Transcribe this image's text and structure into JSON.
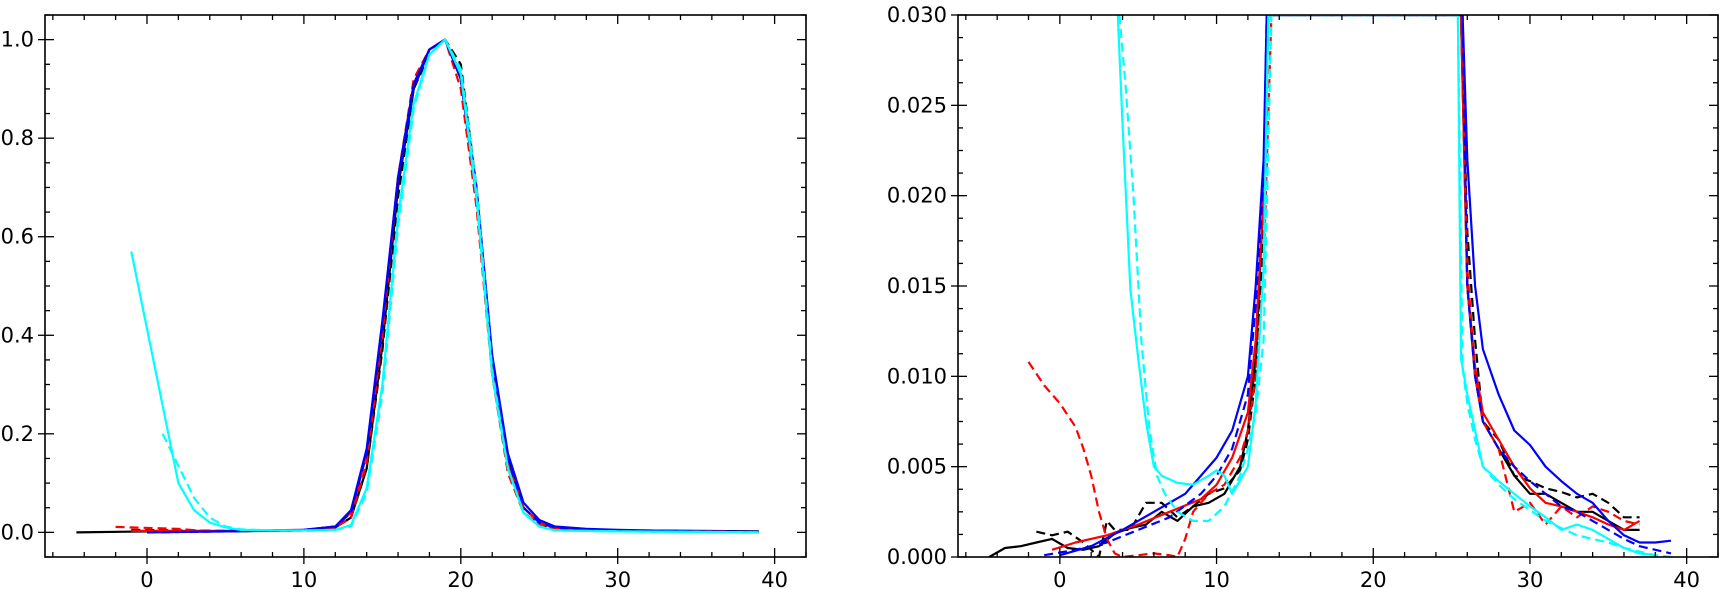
{
  "chart_data": [
    {
      "type": "line",
      "title": "",
      "xlabel": "",
      "ylabel": "",
      "xlim": [
        -6.5,
        42
      ],
      "ylim": [
        -0.05,
        1.05
      ],
      "xticks": [
        0,
        10,
        20,
        30,
        40
      ],
      "xtick_labels": [
        "0",
        "10",
        "20",
        "30",
        "40"
      ],
      "yticks": [
        0.0,
        0.2,
        0.4,
        0.6,
        0.8,
        1.0
      ],
      "ytick_labels": [
        "0.0",
        "0.2",
        "0.4",
        "0.6",
        "0.8",
        "1.0"
      ],
      "grid": false,
      "series": [
        {
          "color": "#000000",
          "dash": "solid",
          "x": [
            -4.5,
            0,
            5,
            10,
            12,
            13,
            14,
            15,
            16,
            17,
            18,
            19,
            20,
            21,
            22,
            23,
            24,
            25,
            26,
            28,
            30,
            35,
            39
          ],
          "y": [
            0.0,
            0.002,
            0.002,
            0.004,
            0.01,
            0.03,
            0.13,
            0.38,
            0.7,
            0.9,
            0.98,
            1.0,
            0.93,
            0.7,
            0.35,
            0.15,
            0.05,
            0.02,
            0.01,
            0.006,
            0.004,
            0.003,
            0.002
          ]
        },
        {
          "color": "#000000",
          "dash": "dashed",
          "x": [
            -1,
            5,
            10,
            12,
            13,
            14,
            15,
            16,
            17,
            18,
            19,
            20,
            21,
            22,
            23,
            24,
            25,
            26,
            30,
            35,
            37
          ],
          "y": [
            0.005,
            0.003,
            0.004,
            0.01,
            0.03,
            0.13,
            0.37,
            0.68,
            0.9,
            0.97,
            1.0,
            0.95,
            0.7,
            0.32,
            0.13,
            0.04,
            0.015,
            0.005,
            0.003,
            0.002,
            0.002
          ]
        },
        {
          "color": "#ff0000",
          "dash": "solid",
          "x": [
            -1,
            5,
            10,
            12,
            13,
            14,
            15,
            16,
            17,
            18,
            19,
            20,
            21,
            22,
            23,
            24,
            25,
            26,
            30,
            35,
            37
          ],
          "y": [
            0.003,
            0.003,
            0.005,
            0.012,
            0.04,
            0.16,
            0.42,
            0.72,
            0.91,
            0.98,
            1.0,
            0.92,
            0.68,
            0.34,
            0.14,
            0.05,
            0.02,
            0.008,
            0.004,
            0.002,
            0.002
          ]
        },
        {
          "color": "#ff0000",
          "dash": "dashed",
          "x": [
            -2,
            2,
            4,
            10,
            12,
            13,
            14,
            15,
            16,
            17,
            18,
            19,
            20,
            21,
            22,
            23,
            24,
            25,
            26,
            30,
            35,
            37
          ],
          "y": [
            0.011,
            0.007,
            0.002,
            0.004,
            0.01,
            0.03,
            0.14,
            0.4,
            0.72,
            0.92,
            0.98,
            1.0,
            0.9,
            0.66,
            0.32,
            0.12,
            0.04,
            0.015,
            0.005,
            0.003,
            0.002,
            0.002
          ]
        },
        {
          "color": "#0000ff",
          "dash": "solid",
          "x": [
            0,
            5,
            10,
            12,
            13,
            14,
            15,
            16,
            17,
            18,
            19,
            20,
            21,
            22,
            23,
            24,
            25,
            26,
            28,
            30,
            35,
            39
          ],
          "y": [
            0.0,
            0.002,
            0.005,
            0.012,
            0.045,
            0.17,
            0.43,
            0.72,
            0.91,
            0.98,
            1.0,
            0.92,
            0.7,
            0.36,
            0.16,
            0.06,
            0.025,
            0.012,
            0.007,
            0.005,
            0.002,
            0.001
          ]
        },
        {
          "color": "#0000ff",
          "dash": "dashed",
          "x": [
            0,
            5,
            10,
            12,
            13,
            14,
            15,
            16,
            17,
            18,
            19,
            20,
            21,
            22,
            23,
            24,
            25,
            26,
            30,
            35,
            39
          ],
          "y": [
            0.0,
            0.002,
            0.005,
            0.012,
            0.04,
            0.16,
            0.42,
            0.71,
            0.9,
            0.98,
            1.0,
            0.92,
            0.68,
            0.34,
            0.15,
            0.05,
            0.02,
            0.01,
            0.004,
            0.002,
            0.0
          ]
        },
        {
          "color": "#00ffff",
          "dash": "solid",
          "x": [
            -1,
            2,
            3,
            4,
            5,
            6,
            8,
            10,
            12,
            13,
            14,
            15,
            16,
            17,
            18,
            19,
            20,
            21,
            22,
            23,
            24,
            25,
            26,
            30,
            35,
            39
          ],
          "y": [
            0.57,
            0.1,
            0.045,
            0.02,
            0.01,
            0.005,
            0.004,
            0.004,
            0.005,
            0.015,
            0.09,
            0.3,
            0.64,
            0.87,
            0.97,
            1.0,
            0.93,
            0.68,
            0.32,
            0.13,
            0.04,
            0.012,
            0.004,
            0.002,
            0.001,
            0.0
          ]
        },
        {
          "color": "#00ffff",
          "dash": "dashed",
          "x": [
            1,
            3,
            4,
            5,
            6,
            8,
            10,
            12,
            13,
            14,
            15,
            16,
            17,
            18,
            19,
            20,
            21,
            22,
            23,
            24,
            25,
            26,
            30,
            35,
            39
          ],
          "y": [
            0.2,
            0.07,
            0.03,
            0.012,
            0.006,
            0.004,
            0.003,
            0.005,
            0.012,
            0.08,
            0.28,
            0.62,
            0.86,
            0.97,
            1.0,
            0.94,
            0.7,
            0.33,
            0.13,
            0.04,
            0.012,
            0.004,
            0.002,
            0.001,
            0.0
          ]
        }
      ]
    },
    {
      "type": "line",
      "title": "",
      "xlabel": "",
      "ylabel": "",
      "xlim": [
        -6.5,
        42
      ],
      "ylim": [
        0,
        0.03
      ],
      "xticks": [
        0,
        10,
        20,
        30,
        40
      ],
      "xtick_labels": [
        "0",
        "10",
        "20",
        "30",
        "40"
      ],
      "yticks": [
        0.0,
        0.005,
        0.01,
        0.015,
        0.02,
        0.025,
        0.03
      ],
      "ytick_labels": [
        "0.000",
        "0.005",
        "0.010",
        "0.015",
        "0.020",
        "0.025",
        "0.030"
      ],
      "grid": false,
      "series": [
        {
          "color": "#000000",
          "dash": "solid",
          "x": [
            -4.5,
            -3.5,
            -2.5,
            -1.5,
            -0.5,
            0.5,
            1.5,
            2.5,
            3.5,
            4.5,
            5.5,
            6.5,
            7.5,
            8.5,
            9.5,
            10.5,
            11.5,
            12,
            12.5,
            13,
            13.3,
            25.6,
            26,
            26.5,
            27,
            28,
            29,
            30,
            31,
            32,
            33,
            34,
            35,
            36,
            37
          ],
          "y": [
            0.0,
            0.0005,
            0.0006,
            0.0008,
            0.001,
            0.0005,
            0.0004,
            0.0006,
            0.0013,
            0.0016,
            0.0018,
            0.0025,
            0.002,
            0.0028,
            0.003,
            0.0035,
            0.005,
            0.007,
            0.011,
            0.02,
            0.03,
            0.03,
            0.015,
            0.01,
            0.0075,
            0.006,
            0.0045,
            0.0035,
            0.0035,
            0.003,
            0.0025,
            0.0025,
            0.002,
            0.0015,
            0.0015
          ]
        },
        {
          "color": "#000000",
          "dash": "dashed",
          "x": [
            -1.5,
            -0.5,
            0.5,
            1.5,
            2.5,
            3,
            3.5,
            4.5,
            5.5,
            6.5,
            7.5,
            8.5,
            9.5,
            10.5,
            11.5,
            12,
            12.5,
            13,
            13.3,
            25.6,
            26,
            26.5,
            27,
            28,
            29,
            30,
            31,
            32,
            33,
            34,
            35,
            36,
            37
          ],
          "y": [
            0.0014,
            0.0012,
            0.0014,
            0.0008,
            0.0,
            0.002,
            0.0015,
            0.0015,
            0.003,
            0.003,
            0.0022,
            0.0028,
            0.0035,
            0.0038,
            0.0048,
            0.0065,
            0.01,
            0.018,
            0.03,
            0.03,
            0.018,
            0.012,
            0.0075,
            0.0065,
            0.0045,
            0.0042,
            0.0038,
            0.0036,
            0.0033,
            0.0035,
            0.003,
            0.0022,
            0.0022
          ]
        },
        {
          "color": "#ff0000",
          "dash": "solid",
          "x": [
            -0.5,
            1,
            3,
            5,
            7,
            9,
            10,
            11,
            12,
            12.5,
            13,
            13.3,
            25.6,
            26,
            26.5,
            27,
            28,
            29,
            30,
            31,
            32,
            33,
            34,
            35,
            36,
            37
          ],
          "y": [
            0.0004,
            0.0008,
            0.0012,
            0.0018,
            0.0025,
            0.0032,
            0.004,
            0.0055,
            0.008,
            0.012,
            0.02,
            0.03,
            0.03,
            0.015,
            0.0105,
            0.008,
            0.0065,
            0.005,
            0.0038,
            0.003,
            0.0028,
            0.0025,
            0.0022,
            0.0018,
            0.0015,
            0.002
          ]
        },
        {
          "color": "#ff0000",
          "dash": "dashed",
          "x": [
            -2,
            -1,
            0,
            1,
            1.5,
            2,
            2.5,
            3,
            3.5,
            4,
            5,
            6,
            7,
            7.5,
            8,
            8.5,
            9.5,
            10.5,
            11.5,
            12,
            12.5,
            13,
            13.5,
            25.6,
            26,
            26.5,
            27,
            28,
            29,
            30,
            31,
            32,
            33,
            34,
            35,
            36,
            37
          ],
          "y": [
            0.0108,
            0.0095,
            0.0085,
            0.0072,
            0.006,
            0.0045,
            0.0025,
            0.001,
            0.0002,
            0.0,
            0.0001,
            0.0002,
            0.0001,
            0.0,
            0.001,
            0.0025,
            0.0035,
            0.004,
            0.0055,
            0.007,
            0.01,
            0.016,
            0.03,
            0.03,
            0.016,
            0.01,
            0.0075,
            0.006,
            0.0025,
            0.003,
            0.0018,
            0.0028,
            0.0022,
            0.0028,
            0.0025,
            0.002,
            0.0018
          ]
        },
        {
          "color": "#0000ff",
          "dash": "solid",
          "x": [
            0,
            2,
            4,
            6,
            8,
            10,
            11,
            12,
            12.5,
            13,
            13.2,
            25.7,
            26,
            26.5,
            27,
            28,
            29,
            30,
            31,
            32,
            33,
            34,
            35,
            36,
            37,
            38,
            39
          ],
          "y": [
            0.0001,
            0.0006,
            0.0015,
            0.0025,
            0.0035,
            0.0055,
            0.007,
            0.01,
            0.015,
            0.022,
            0.03,
            0.03,
            0.022,
            0.015,
            0.0115,
            0.009,
            0.007,
            0.0062,
            0.005,
            0.0042,
            0.0035,
            0.003,
            0.002,
            0.0012,
            0.0008,
            0.0008,
            0.0009
          ]
        },
        {
          "color": "#0000ff",
          "dash": "dashed",
          "x": [
            -1,
            1,
            3,
            5,
            7,
            9,
            10,
            11,
            12,
            12.5,
            13,
            13.2,
            25.7,
            26,
            26.5,
            27,
            28,
            29,
            30,
            31,
            32,
            33,
            34,
            35,
            36,
            37,
            38,
            39
          ],
          "y": [
            0.0001,
            0.0004,
            0.0008,
            0.0015,
            0.0022,
            0.0035,
            0.0045,
            0.006,
            0.009,
            0.014,
            0.021,
            0.03,
            0.03,
            0.015,
            0.01,
            0.0075,
            0.006,
            0.005,
            0.0042,
            0.0035,
            0.0028,
            0.0025,
            0.002,
            0.0015,
            0.001,
            0.0006,
            0.0004,
            0.0002
          ]
        },
        {
          "color": "#00ffff",
          "dash": "solid",
          "x": [
            3.7,
            4,
            4.5,
            5,
            5.5,
            6,
            6.5,
            7.5,
            8.5,
            9.5,
            10,
            10.5,
            11,
            12,
            12.5,
            13,
            13.3,
            25.4,
            25.6,
            26,
            26.5,
            27,
            28,
            29,
            30,
            31,
            32,
            33,
            34,
            35,
            36,
            37,
            38
          ],
          "y": [
            0.03,
            0.024,
            0.0148,
            0.011,
            0.0075,
            0.005,
            0.0045,
            0.0041,
            0.004,
            0.0045,
            0.0048,
            0.0045,
            0.0035,
            0.005,
            0.0085,
            0.016,
            0.03,
            0.03,
            0.011,
            0.009,
            0.007,
            0.005,
            0.0042,
            0.0035,
            0.0028,
            0.0022,
            0.0015,
            0.0018,
            0.0015,
            0.001,
            0.0005,
            0.0002,
            0.0001
          ]
        },
        {
          "color": "#00ffff",
          "dash": "dashed",
          "x": [
            3.8,
            4.2,
            4.7,
            5.2,
            5.7,
            6.2,
            6.7,
            7.5,
            8.5,
            9.5,
            10.5,
            11.5,
            12,
            12.5,
            13,
            13.5,
            25.4,
            25.7,
            26,
            26.5,
            27,
            28,
            29,
            30,
            31,
            32,
            33,
            34,
            35,
            36,
            37,
            38,
            39
          ],
          "y": [
            0.03,
            0.026,
            0.02,
            0.012,
            0.0072,
            0.0045,
            0.0035,
            0.0025,
            0.002,
            0.002,
            0.0028,
            0.0045,
            0.006,
            0.008,
            0.012,
            0.03,
            0.03,
            0.0105,
            0.0085,
            0.0065,
            0.005,
            0.004,
            0.0032,
            0.0026,
            0.002,
            0.0016,
            0.0012,
            0.001,
            0.0008,
            0.0005,
            0.0003,
            0.0001,
            0.0
          ]
        }
      ]
    }
  ]
}
